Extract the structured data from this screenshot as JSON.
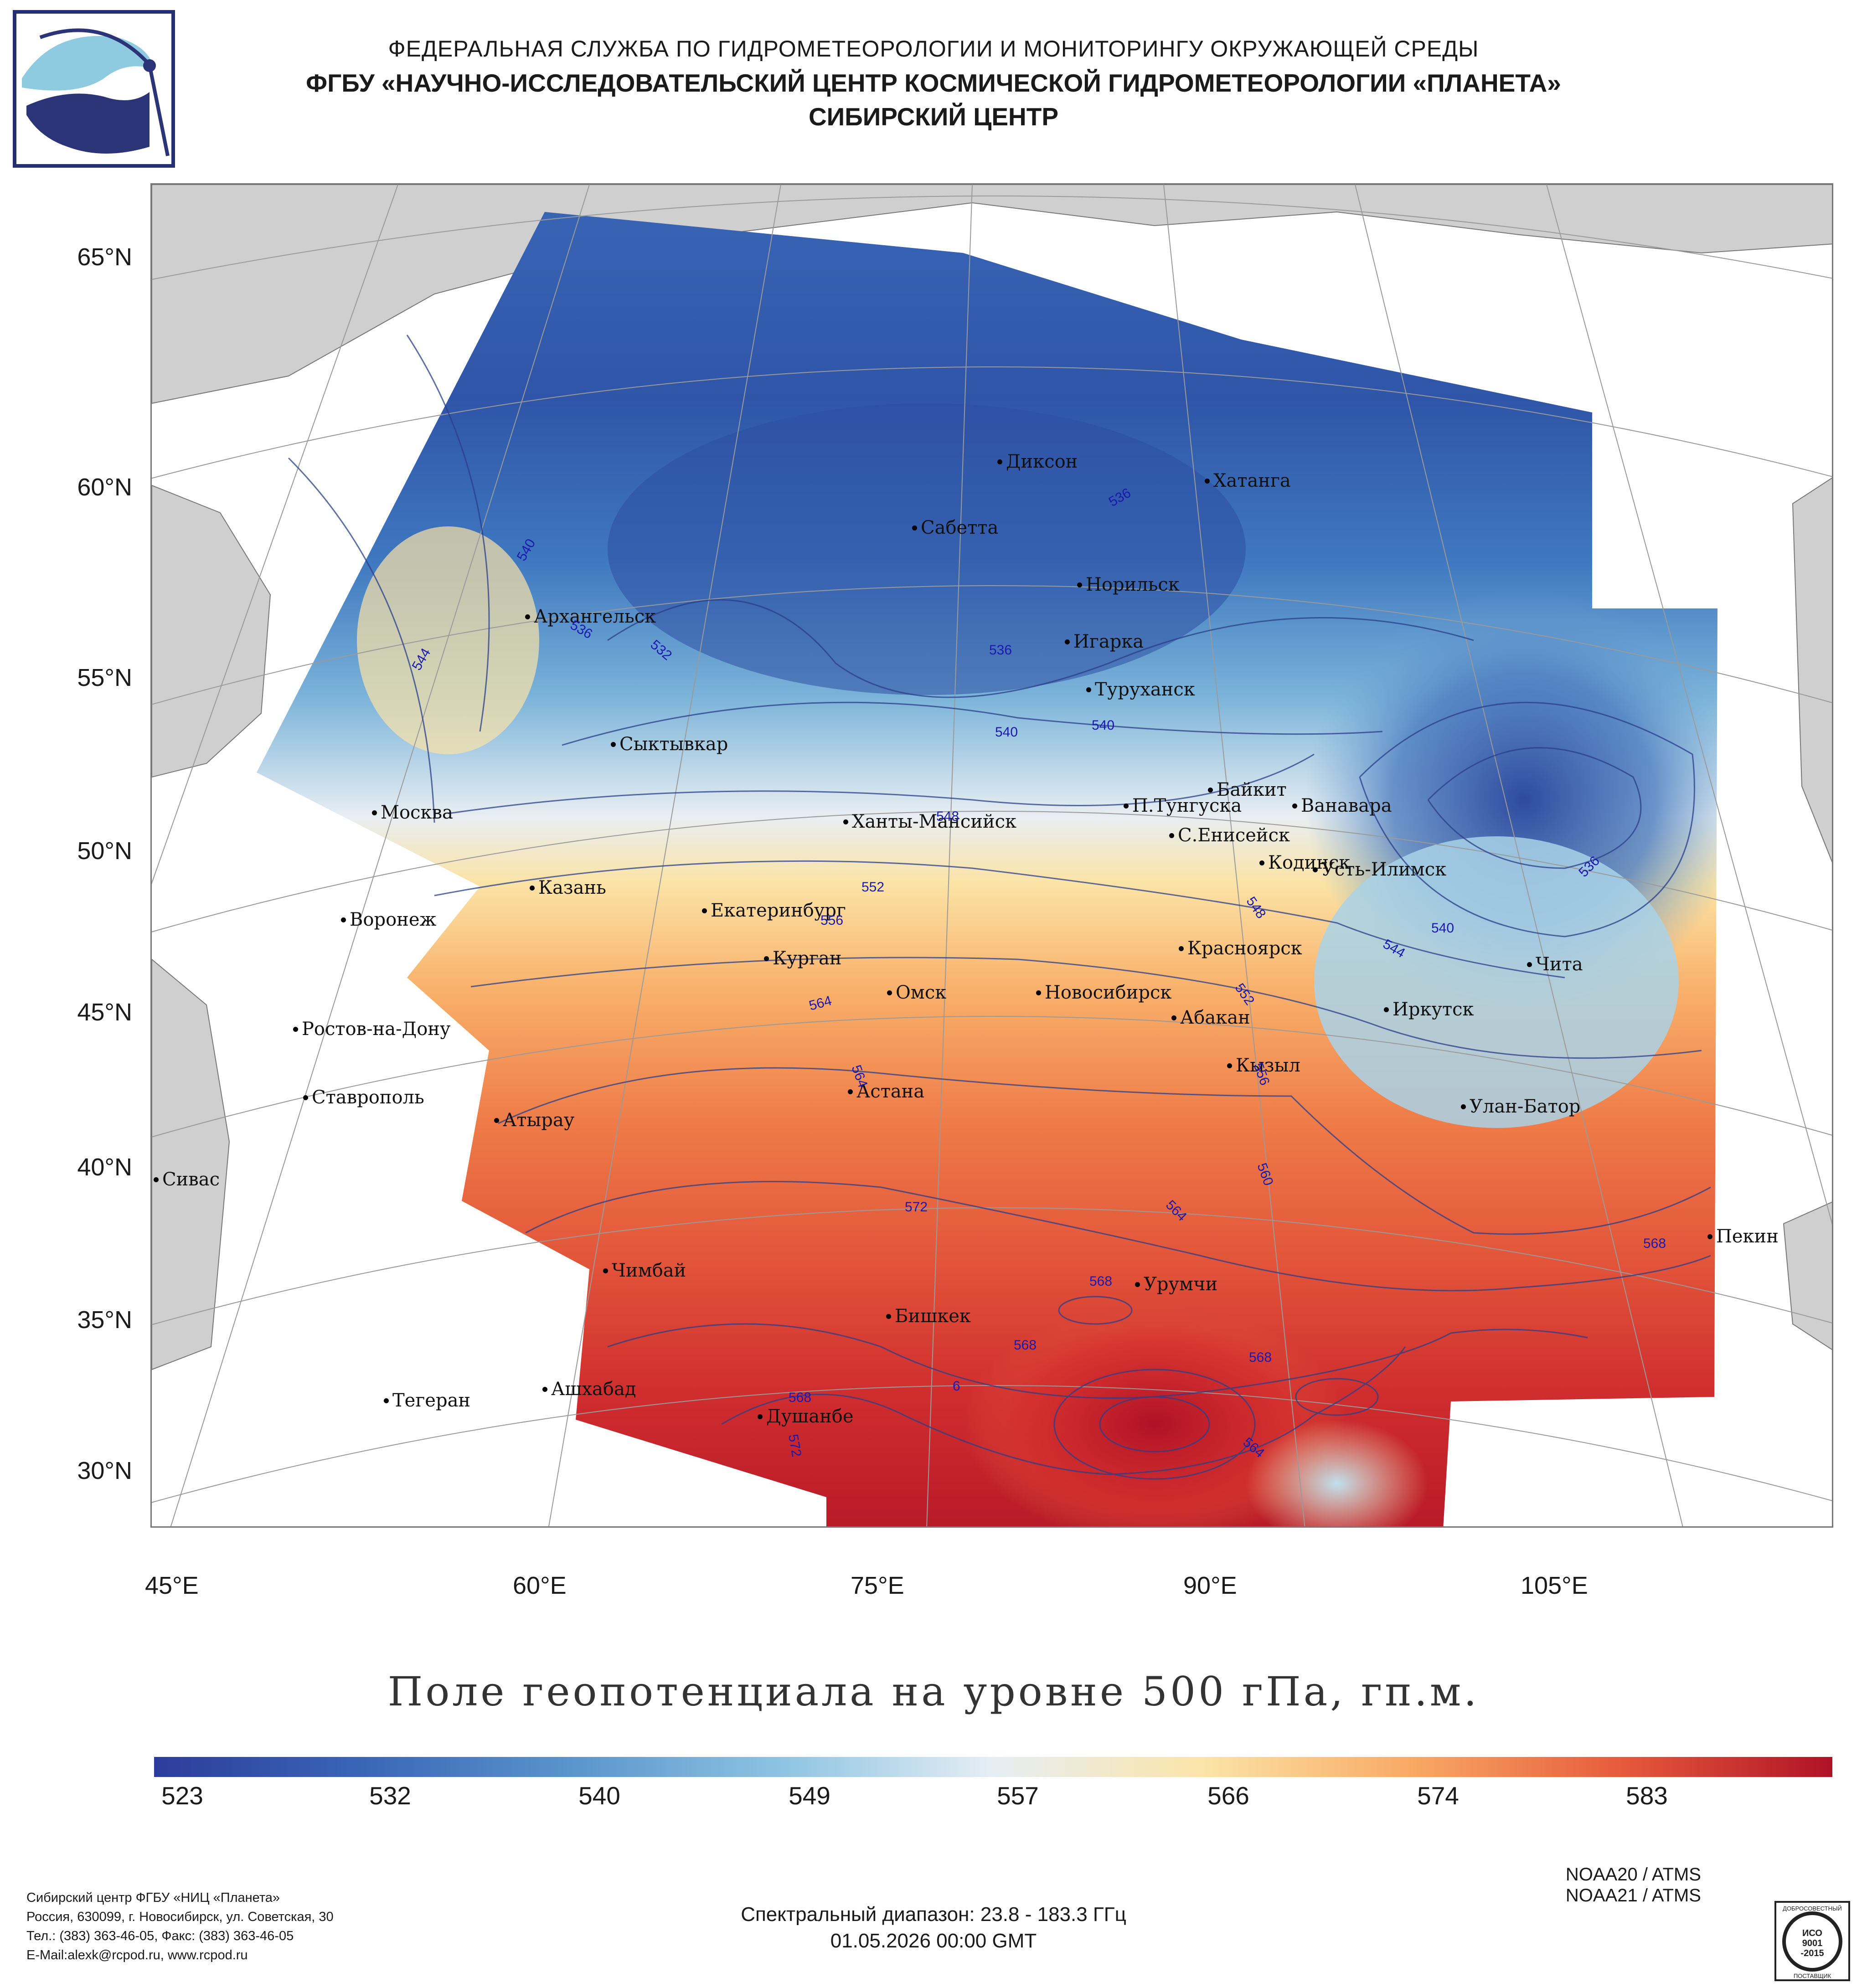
{
  "header": {
    "org_line1": "ФЕДЕРАЛЬНАЯ СЛУЖБА ПО ГИДРОМЕТЕОРОЛОГИИ И МОНИТОРИНГУ ОКРУЖАЮЩЕЙ СРЕДЫ",
    "org_line2": "ФГБУ «НАУЧНО-ИССЛЕДОВАТЕЛЬСКИЙ ЦЕНТР КОСМИЧЕСКОЙ ГИДРОМЕТЕОРОЛОГИИ «ПЛАНЕТА»",
    "org_line3": "СИБИРСКИЙ ЦЕНТР"
  },
  "map": {
    "lat_labels": [
      "65°N",
      "60°N",
      "55°N",
      "50°N",
      "45°N",
      "40°N",
      "35°N",
      "30°N"
    ],
    "lon_labels": [
      "45°E",
      "60°E",
      "75°E",
      "90°E",
      "105°E"
    ],
    "cities": [
      "Диксон",
      "Хатанга",
      "Сабетта",
      "Норильск",
      "Архангельск",
      "Игарка",
      "Туруханск",
      "Сыктывкар",
      "Байкит",
      "Москва",
      "П.Тунгуска",
      "Ванавара",
      "Ханты-Мансийск",
      "С.Енисейск",
      "Кодинск",
      "Усть-Илимск",
      "Казань",
      "Екатеринбург",
      "Воронеж",
      "Красноярск",
      "Курган",
      "Чита",
      "Омск",
      "Новосибирск",
      "Ростов-на-Дону",
      "Абакан",
      "Иркутск",
      "Кызыл",
      "Астана",
      "Ставрополь",
      "Улан-Батор",
      "Атырау",
      "Сивас",
      "Пекин",
      "Чимбай",
      "Урумчи",
      "Бишкек",
      "Ашхабад",
      "Тегеран",
      "Душанбе"
    ],
    "contour_labels": [
      "536",
      "540",
      "536",
      "532",
      "544",
      "536",
      "540",
      "540",
      "548",
      "552",
      "556",
      "564",
      "548",
      "552",
      "540",
      "536",
      "544",
      "556",
      "564",
      "560",
      "572",
      "564",
      "568",
      "568",
      "568",
      "568",
      "568",
      "572",
      "6",
      "564"
    ],
    "colors": {
      "land": "#d0d0d0",
      "ocean": "#ffffff",
      "contour": "#2a3f8a",
      "contour_label": "#1a1ab0"
    }
  },
  "title": "Поле геопотенциала на уровне 500 гПа, гп.м.",
  "colorbar": {
    "ticks": [
      "523",
      "532",
      "540",
      "549",
      "557",
      "566",
      "574",
      "583"
    ],
    "colors": [
      "#2c3c9a",
      "#3a66b6",
      "#5a95cc",
      "#8ec4e2",
      "#e6eef4",
      "#fbe4a8",
      "#f8a964",
      "#e65a3c",
      "#b01226"
    ]
  },
  "satellites": [
    "NOAA20 / ATMS",
    "NOAA21 / ATMS"
  ],
  "spectral": "Спектральный диапазон: 23.8 - 183.3 ГГц",
  "datetime": "01.05.2026 00:00 GMT",
  "contact": {
    "line1": "Сибирский центр ФГБУ «НИЦ «Планета»",
    "line2": "Россия, 630099, г. Новосибирск, ул. Советская, 30",
    "line3": "Тел.: (383) 363-46-05, Факс: (383) 363-46-05",
    "line4": "E-Mail:alexk@rcpod.ru, www.rcpod.ru"
  },
  "iso_badge": {
    "top": "ДОБРОСОВЕСТНЫЙ",
    "mid1": "ИСО",
    "mid2": "9001",
    "mid3": "-2015",
    "bottom": "ПОСТАВЩИК"
  }
}
